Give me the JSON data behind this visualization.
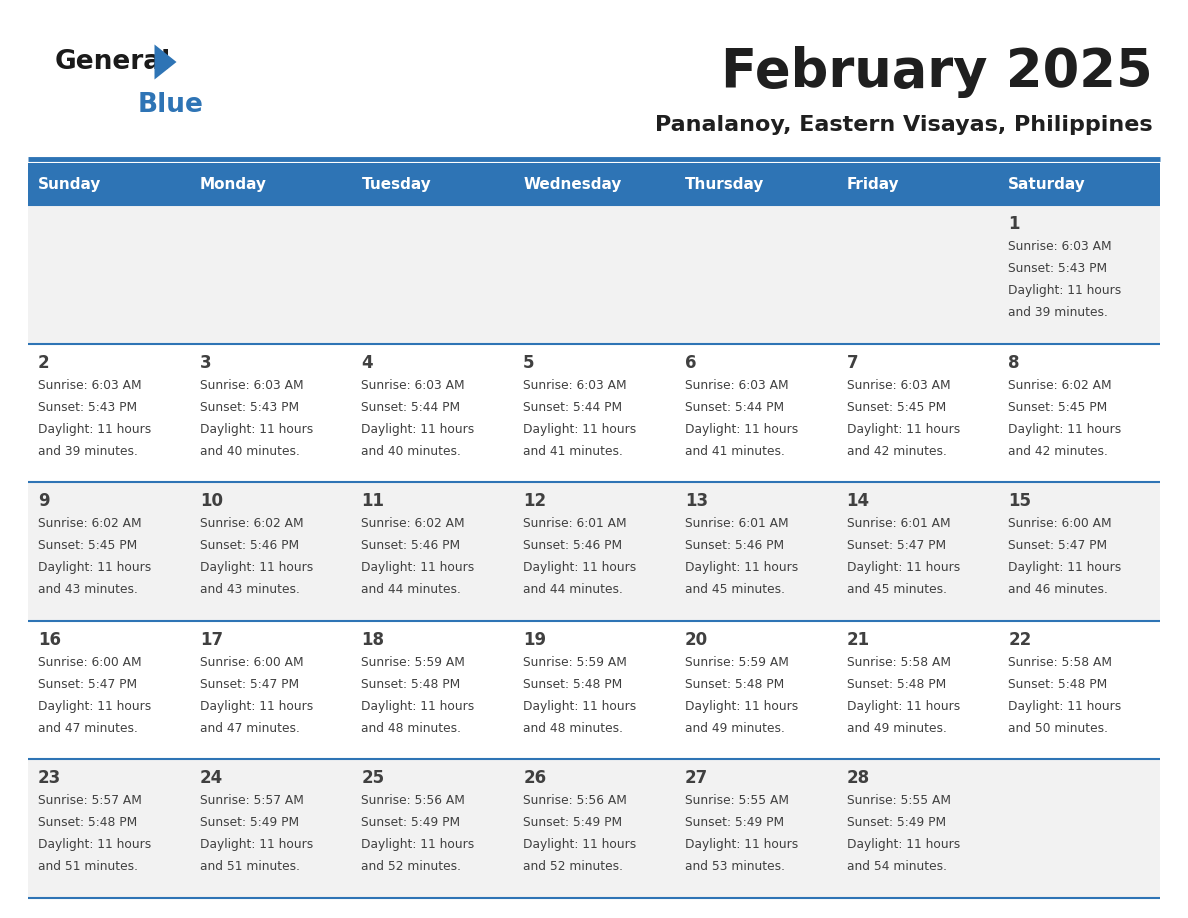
{
  "title": "February 2025",
  "subtitle": "Panalanoy, Eastern Visayas, Philippines",
  "days_of_week": [
    "Sunday",
    "Monday",
    "Tuesday",
    "Wednesday",
    "Thursday",
    "Friday",
    "Saturday"
  ],
  "header_bg": "#2E74B5",
  "header_text": "#FFFFFF",
  "cell_bg_even": "#FFFFFF",
  "cell_bg_odd": "#F2F2F2",
  "divider_color": "#2E74B5",
  "text_color": "#404040",
  "title_color": "#1F1F1F",
  "subtitle_color": "#1F1F1F",
  "calendar_data": [
    [
      null,
      null,
      null,
      null,
      null,
      null,
      {
        "day": "1",
        "sunrise": "6:03 AM",
        "sunset": "5:43 PM",
        "daylight": "11 hours",
        "daylight2": "and 39 minutes."
      }
    ],
    [
      {
        "day": "2",
        "sunrise": "6:03 AM",
        "sunset": "5:43 PM",
        "daylight": "11 hours",
        "daylight2": "and 39 minutes."
      },
      {
        "day": "3",
        "sunrise": "6:03 AM",
        "sunset": "5:43 PM",
        "daylight": "11 hours",
        "daylight2": "and 40 minutes."
      },
      {
        "day": "4",
        "sunrise": "6:03 AM",
        "sunset": "5:44 PM",
        "daylight": "11 hours",
        "daylight2": "and 40 minutes."
      },
      {
        "day": "5",
        "sunrise": "6:03 AM",
        "sunset": "5:44 PM",
        "daylight": "11 hours",
        "daylight2": "and 41 minutes."
      },
      {
        "day": "6",
        "sunrise": "6:03 AM",
        "sunset": "5:44 PM",
        "daylight": "11 hours",
        "daylight2": "and 41 minutes."
      },
      {
        "day": "7",
        "sunrise": "6:03 AM",
        "sunset": "5:45 PM",
        "daylight": "11 hours",
        "daylight2": "and 42 minutes."
      },
      {
        "day": "8",
        "sunrise": "6:02 AM",
        "sunset": "5:45 PM",
        "daylight": "11 hours",
        "daylight2": "and 42 minutes."
      }
    ],
    [
      {
        "day": "9",
        "sunrise": "6:02 AM",
        "sunset": "5:45 PM",
        "daylight": "11 hours",
        "daylight2": "and 43 minutes."
      },
      {
        "day": "10",
        "sunrise": "6:02 AM",
        "sunset": "5:46 PM",
        "daylight": "11 hours",
        "daylight2": "and 43 minutes."
      },
      {
        "day": "11",
        "sunrise": "6:02 AM",
        "sunset": "5:46 PM",
        "daylight": "11 hours",
        "daylight2": "and 44 minutes."
      },
      {
        "day": "12",
        "sunrise": "6:01 AM",
        "sunset": "5:46 PM",
        "daylight": "11 hours",
        "daylight2": "and 44 minutes."
      },
      {
        "day": "13",
        "sunrise": "6:01 AM",
        "sunset": "5:46 PM",
        "daylight": "11 hours",
        "daylight2": "and 45 minutes."
      },
      {
        "day": "14",
        "sunrise": "6:01 AM",
        "sunset": "5:47 PM",
        "daylight": "11 hours",
        "daylight2": "and 45 minutes."
      },
      {
        "day": "15",
        "sunrise": "6:00 AM",
        "sunset": "5:47 PM",
        "daylight": "11 hours",
        "daylight2": "and 46 minutes."
      }
    ],
    [
      {
        "day": "16",
        "sunrise": "6:00 AM",
        "sunset": "5:47 PM",
        "daylight": "11 hours",
        "daylight2": "and 47 minutes."
      },
      {
        "day": "17",
        "sunrise": "6:00 AM",
        "sunset": "5:47 PM",
        "daylight": "11 hours",
        "daylight2": "and 47 minutes."
      },
      {
        "day": "18",
        "sunrise": "5:59 AM",
        "sunset": "5:48 PM",
        "daylight": "11 hours",
        "daylight2": "and 48 minutes."
      },
      {
        "day": "19",
        "sunrise": "5:59 AM",
        "sunset": "5:48 PM",
        "daylight": "11 hours",
        "daylight2": "and 48 minutes."
      },
      {
        "day": "20",
        "sunrise": "5:59 AM",
        "sunset": "5:48 PM",
        "daylight": "11 hours",
        "daylight2": "and 49 minutes."
      },
      {
        "day": "21",
        "sunrise": "5:58 AM",
        "sunset": "5:48 PM",
        "daylight": "11 hours",
        "daylight2": "and 49 minutes."
      },
      {
        "day": "22",
        "sunrise": "5:58 AM",
        "sunset": "5:48 PM",
        "daylight": "11 hours",
        "daylight2": "and 50 minutes."
      }
    ],
    [
      {
        "day": "23",
        "sunrise": "5:57 AM",
        "sunset": "5:48 PM",
        "daylight": "11 hours",
        "daylight2": "and 51 minutes."
      },
      {
        "day": "24",
        "sunrise": "5:57 AM",
        "sunset": "5:49 PM",
        "daylight": "11 hours",
        "daylight2": "and 51 minutes."
      },
      {
        "day": "25",
        "sunrise": "5:56 AM",
        "sunset": "5:49 PM",
        "daylight": "11 hours",
        "daylight2": "and 52 minutes."
      },
      {
        "day": "26",
        "sunrise": "5:56 AM",
        "sunset": "5:49 PM",
        "daylight": "11 hours",
        "daylight2": "and 52 minutes."
      },
      {
        "day": "27",
        "sunrise": "5:55 AM",
        "sunset": "5:49 PM",
        "daylight": "11 hours",
        "daylight2": "and 53 minutes."
      },
      {
        "day": "28",
        "sunrise": "5:55 AM",
        "sunset": "5:49 PM",
        "daylight": "11 hours",
        "daylight2": "and 54 minutes."
      },
      null
    ]
  ]
}
